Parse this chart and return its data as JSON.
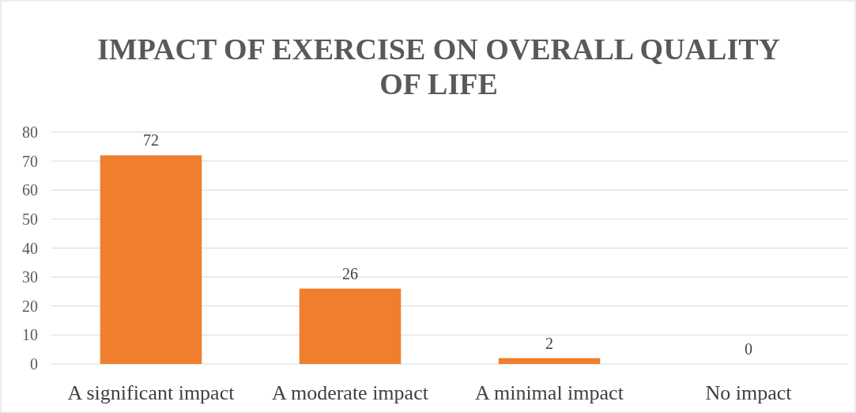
{
  "chart_data": {
    "type": "bar",
    "title": "IMPACT OF EXERCISE ON OVERALL QUALITY OF LIFE",
    "categories": [
      "A significant impact",
      "A moderate impact",
      "A minimal impact",
      "No impact"
    ],
    "values": [
      72,
      26,
      2,
      0
    ],
    "color": "#ef7f2d",
    "ylim": [
      0,
      80
    ],
    "yticks": [
      0,
      10,
      20,
      30,
      40,
      50,
      60,
      70,
      80
    ],
    "grid": "y",
    "data_labels": true
  }
}
